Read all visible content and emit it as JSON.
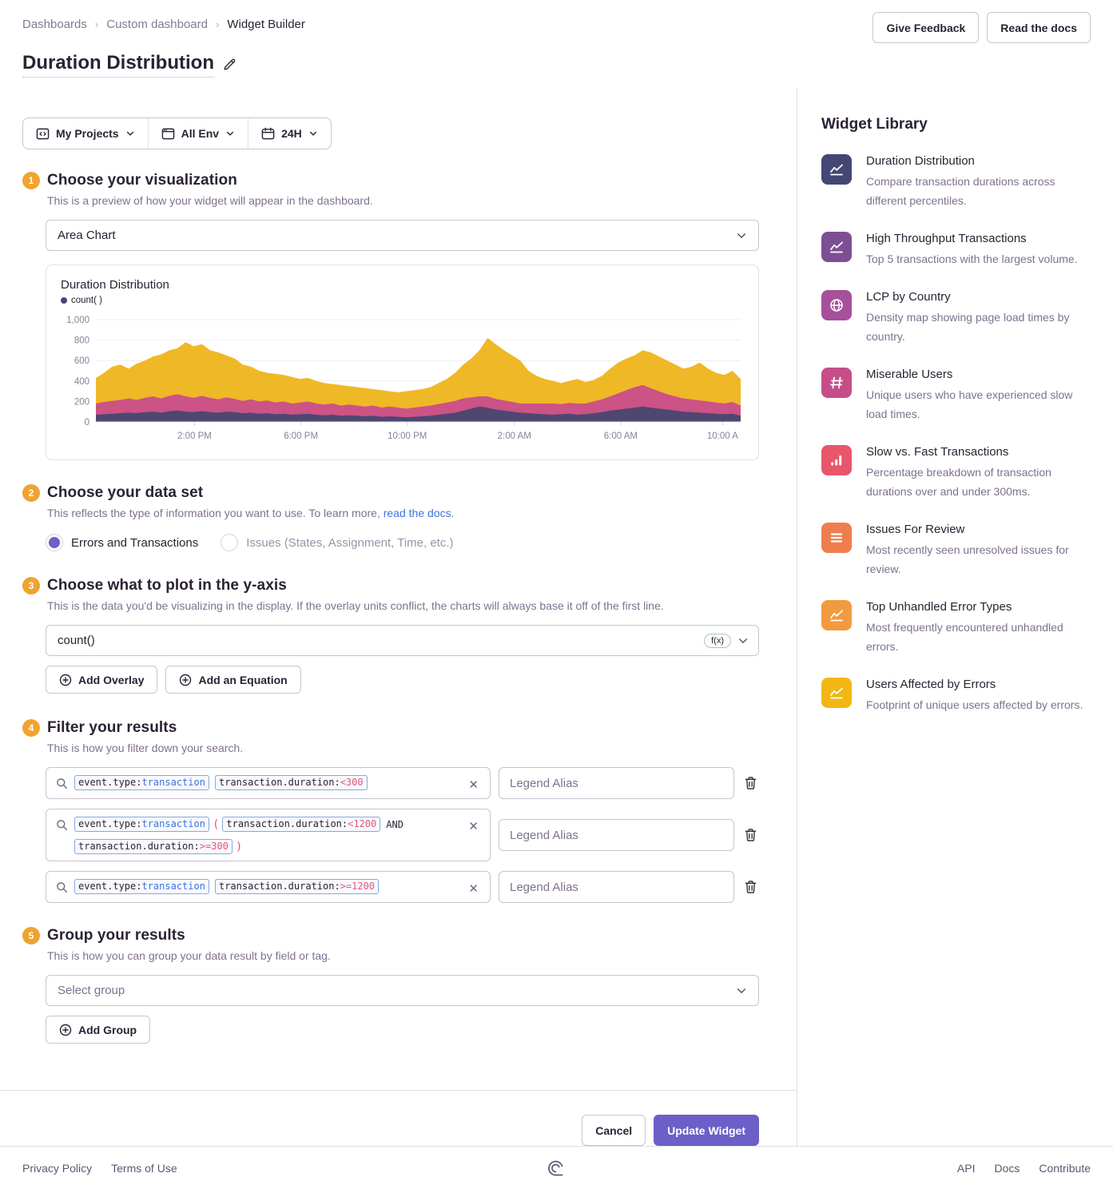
{
  "breadcrumb": {
    "items": [
      "Dashboards",
      "Custom dashboard",
      "Widget Builder"
    ]
  },
  "header": {
    "title": "Duration Distribution",
    "feedback_button": "Give Feedback",
    "docs_button": "Read the docs"
  },
  "filter_bar": {
    "projects": "My Projects",
    "environment": "All Env",
    "time_range": "24H"
  },
  "steps": {
    "visualization": {
      "num": "1",
      "title": "Choose your visualization",
      "desc": "This is a preview of how your widget will appear in the dashboard."
    },
    "dataset": {
      "num": "2",
      "title": "Choose your data set",
      "desc_prefix": "This reflects the type of information you want to use. To learn more, ",
      "desc_link": "read the docs",
      "desc_suffix": "."
    },
    "yaxis": {
      "num": "3",
      "title": "Choose what to plot in the y-axis",
      "desc": "This is the data you'd be visualizing in the display. If the overlay units conflict, the charts will always base it off of the first line."
    },
    "filter": {
      "num": "4",
      "title": "Filter your results",
      "desc": "This is how you filter down your search."
    },
    "group": {
      "num": "5",
      "title": "Group your results",
      "desc": "This is how you can group your data result by field or tag."
    }
  },
  "visualization": {
    "selected": "Area Chart"
  },
  "chart_data": {
    "type": "area",
    "stacked": true,
    "title": "Duration Distribution",
    "legend": [
      {
        "label": "count( )",
        "color": "#444674"
      }
    ],
    "ylim": [
      0,
      1000
    ],
    "yticks": [
      {
        "value": 0,
        "label": "0"
      },
      {
        "value": 200,
        "label": "200"
      },
      {
        "value": 400,
        "label": "400"
      },
      {
        "value": 600,
        "label": "600"
      },
      {
        "value": 800,
        "label": "800"
      },
      {
        "value": 1000,
        "label": "1,000"
      }
    ],
    "xticks": [
      {
        "label": "2:00 PM",
        "pos": 0.153
      },
      {
        "label": "6:00 PM",
        "pos": 0.318
      },
      {
        "label": "10:00 PM",
        "pos": 0.483
      },
      {
        "label": "2:00 AM",
        "pos": 0.649
      },
      {
        "label": "6:00 AM",
        "pos": 0.814
      },
      {
        "label": "10:00 A",
        "pos": 0.972
      }
    ],
    "series": [
      {
        "name": "series1",
        "color": "#4D4772",
        "values": [
          70,
          75,
          80,
          85,
          90,
          85,
          95,
          100,
          90,
          105,
          110,
          100,
          95,
          105,
          95,
          90,
          100,
          95,
          85,
          90,
          80,
          85,
          75,
          80,
          70,
          75,
          80,
          70,
          65,
          70,
          60,
          65,
          60,
          55,
          60,
          50,
          55,
          50,
          45,
          50,
          55,
          60,
          70,
          80,
          90,
          110,
          130,
          150,
          140,
          120,
          110,
          100,
          90,
          85,
          80,
          75,
          70,
          75,
          80,
          70,
          75,
          85,
          95,
          110,
          120,
          130,
          140,
          150,
          140,
          130,
          120,
          110,
          100,
          95,
          90,
          85,
          80,
          75,
          80,
          60
        ]
      },
      {
        "name": "series2",
        "color": "#CC5385",
        "values": [
          110,
          120,
          125,
          130,
          140,
          130,
          140,
          150,
          140,
          150,
          160,
          150,
          140,
          150,
          140,
          130,
          140,
          130,
          120,
          130,
          120,
          125,
          115,
          120,
          110,
          115,
          120,
          110,
          105,
          110,
          100,
          105,
          100,
          95,
          100,
          90,
          95,
          90,
          85,
          90,
          95,
          100,
          105,
          110,
          115,
          120,
          110,
          100,
          110,
          105,
          100,
          95,
          90,
          95,
          100,
          105,
          110,
          100,
          105,
          110,
          105,
          115,
          125,
          140,
          160,
          180,
          200,
          210,
          190,
          170,
          150,
          140,
          130,
          125,
          120,
          115,
          110,
          105,
          115,
          100
        ]
      },
      {
        "name": "series3",
        "color": "#EFB826",
        "values": [
          250,
          285,
          335,
          345,
          290,
          355,
          365,
          390,
          430,
          445,
          450,
          530,
          505,
          505,
          465,
          460,
          410,
          395,
          355,
          320,
          300,
          270,
          280,
          260,
          260,
          230,
          230,
          220,
          210,
          190,
          200,
          180,
          180,
          180,
          160,
          170,
          150,
          150,
          170,
          170,
          170,
          180,
          205,
          230,
          275,
          330,
          380,
          450,
          570,
          535,
          490,
          455,
          420,
          320,
          270,
          240,
          220,
          205,
          215,
          240,
          210,
          210,
          230,
          270,
          300,
          310,
          310,
          340,
          350,
          340,
          330,
          310,
          290,
          320,
          370,
          320,
          290,
          280,
          305,
          260
        ]
      }
    ]
  },
  "dataset": {
    "options": [
      {
        "label": "Errors and Transactions",
        "selected": true
      },
      {
        "label": "Issues (States, Assignment, Time, etc.)",
        "selected": false
      }
    ]
  },
  "yaxis": {
    "field": "count()",
    "fx_badge": "f(x)",
    "add_overlay": "Add Overlay",
    "add_equation": "Add an Equation"
  },
  "filter_step": {
    "legend_placeholder": "Legend Alias",
    "rows": [
      {
        "segments": [
          {
            "type": "token",
            "key": "event.type:",
            "value": "transaction",
            "valueStyle": "blue"
          },
          {
            "type": "token",
            "key": "transaction.duration:",
            "value": "<300",
            "valueStyle": "pink"
          }
        ]
      },
      {
        "segments": [
          {
            "type": "token",
            "key": "event.type:",
            "value": "transaction",
            "valueStyle": "blue"
          },
          {
            "type": "paren",
            "text": "("
          },
          {
            "type": "token",
            "key": "transaction.duration:",
            "value": "<1200",
            "valueStyle": "pink"
          },
          {
            "type": "text",
            "text": "AND"
          },
          {
            "type": "token",
            "key": "transaction.duration:",
            "value": ">=300",
            "valueStyle": "pink"
          },
          {
            "type": "paren",
            "text": ")"
          }
        ]
      },
      {
        "segments": [
          {
            "type": "token",
            "key": "event.type:",
            "value": "transaction",
            "valueStyle": "blue"
          },
          {
            "type": "token",
            "key": "transaction.duration:",
            "value": ">=1200",
            "valueStyle": "pink"
          }
        ]
      }
    ]
  },
  "group": {
    "placeholder": "Select group",
    "add_button": "Add Group"
  },
  "actions": {
    "cancel": "Cancel",
    "update": "Update Widget"
  },
  "library": {
    "title": "Widget Library",
    "items": [
      {
        "name": "Duration Distribution",
        "desc": "Compare transaction durations across different percentiles.",
        "color": "#444674",
        "icon": "graph-line"
      },
      {
        "name": "High Throughput Transactions",
        "desc": "Top 5 transactions with the largest volume.",
        "color": "#7C4F94",
        "icon": "graph-line"
      },
      {
        "name": "LCP by Country",
        "desc": "Density map showing page load times by country.",
        "color": "#A5509B",
        "icon": "globe"
      },
      {
        "name": "Miserable Users",
        "desc": "Unique users who have experienced slow load times.",
        "color": "#C64E88",
        "icon": "hash"
      },
      {
        "name": "Slow vs. Fast Transactions",
        "desc": "Percentage breakdown of transaction durations over and under 300ms.",
        "color": "#E8566B",
        "icon": "bar-chart"
      },
      {
        "name": "Issues For Review",
        "desc": "Most recently seen unresolved issues for review.",
        "color": "#EF7E4F",
        "icon": "list"
      },
      {
        "name": "Top Unhandled Error Types",
        "desc": "Most frequently encountered unhandled errors.",
        "color": "#F29A3F",
        "icon": "graph-line"
      },
      {
        "name": "Users Affected by Errors",
        "desc": "Footprint of unique users affected by errors.",
        "color": "#F2B712",
        "icon": "graph-line"
      }
    ]
  },
  "footer": {
    "left_links": [
      "Privacy Policy",
      "Terms of Use"
    ],
    "right_links": [
      "API",
      "Docs",
      "Contribute"
    ]
  }
}
